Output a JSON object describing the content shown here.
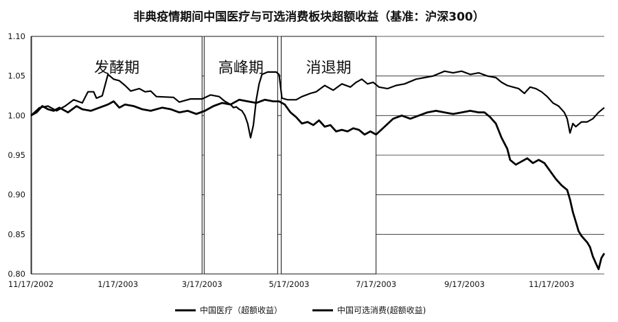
{
  "chart_data": {
    "type": "line",
    "title": "非典疫情期间中国医疗与可选消费板块超额收益（基准：沪深300）",
    "xlabel": "",
    "ylabel": "",
    "ylim": [
      0.8,
      1.1
    ],
    "yticks": [
      "0.80",
      "0.85",
      "0.90",
      "0.95",
      "1.00",
      "1.05",
      "1.10"
    ],
    "xtick_labels": [
      "11/17/2002",
      "1/17/2003",
      "3/17/2003",
      "5/17/2003",
      "7/17/2003",
      "9/17/2003",
      "11/17/2003"
    ],
    "x_range_days": [
      0,
      402
    ],
    "periods": [
      {
        "label": "发酵期",
        "start_day": 0,
        "end_day": 120
      },
      {
        "label": "高峰期",
        "start_day": 121,
        "end_day": 173
      },
      {
        "label": "消退期",
        "start_day": 175,
        "end_day": 242
      }
    ],
    "series": [
      {
        "name": "中国医疗（超额收益）",
        "points": [
          [
            0,
            1.0
          ],
          [
            6,
            1.01
          ],
          [
            12,
            1.012
          ],
          [
            18,
            1.006
          ],
          [
            24,
            1.012
          ],
          [
            30,
            1.02
          ],
          [
            36,
            1.016
          ],
          [
            40,
            1.03
          ],
          [
            44,
            1.03
          ],
          [
            46,
            1.022
          ],
          [
            50,
            1.025
          ],
          [
            54,
            1.052
          ],
          [
            58,
            1.046
          ],
          [
            62,
            1.044
          ],
          [
            66,
            1.038
          ],
          [
            70,
            1.031
          ],
          [
            76,
            1.034
          ],
          [
            80,
            1.03
          ],
          [
            84,
            1.031
          ],
          [
            88,
            1.024
          ],
          [
            100,
            1.023
          ],
          [
            104,
            1.017
          ],
          [
            112,
            1.021
          ],
          [
            120,
            1.021
          ],
          [
            126,
            1.026
          ],
          [
            132,
            1.024
          ],
          [
            136,
            1.018
          ],
          [
            140,
            1.014
          ],
          [
            142,
            1.01
          ],
          [
            144,
            1.011
          ],
          [
            146,
            1.008
          ],
          [
            148,
            1.006
          ],
          [
            150,
            1.0
          ],
          [
            152,
            0.99
          ],
          [
            154,
            0.972
          ],
          [
            156,
            0.988
          ],
          [
            158,
            1.02
          ],
          [
            160,
            1.04
          ],
          [
            162,
            1.052
          ],
          [
            166,
            1.055
          ],
          [
            172,
            1.055
          ],
          [
            174,
            1.052
          ],
          [
            176,
            1.022
          ],
          [
            180,
            1.02
          ],
          [
            186,
            1.02
          ],
          [
            190,
            1.024
          ],
          [
            196,
            1.028
          ],
          [
            200,
            1.03
          ],
          [
            206,
            1.038
          ],
          [
            212,
            1.032
          ],
          [
            218,
            1.04
          ],
          [
            224,
            1.036
          ],
          [
            228,
            1.042
          ],
          [
            232,
            1.046
          ],
          [
            236,
            1.04
          ],
          [
            240,
            1.042
          ],
          [
            244,
            1.036
          ],
          [
            250,
            1.034
          ],
          [
            256,
            1.038
          ],
          [
            262,
            1.04
          ],
          [
            270,
            1.046
          ],
          [
            276,
            1.048
          ],
          [
            282,
            1.05
          ],
          [
            290,
            1.056
          ],
          [
            296,
            1.054
          ],
          [
            302,
            1.056
          ],
          [
            308,
            1.052
          ],
          [
            314,
            1.054
          ],
          [
            320,
            1.05
          ],
          [
            326,
            1.048
          ],
          [
            330,
            1.042
          ],
          [
            334,
            1.038
          ],
          [
            338,
            1.036
          ],
          [
            342,
            1.034
          ],
          [
            346,
            1.028
          ],
          [
            350,
            1.036
          ],
          [
            354,
            1.034
          ],
          [
            358,
            1.03
          ],
          [
            362,
            1.024
          ],
          [
            366,
            1.016
          ],
          [
            370,
            1.012
          ],
          [
            374,
            1.004
          ],
          [
            376,
            0.996
          ],
          [
            378,
            0.978
          ],
          [
            380,
            0.99
          ],
          [
            382,
            0.986
          ],
          [
            386,
            0.992
          ],
          [
            390,
            0.992
          ],
          [
            394,
            0.996
          ],
          [
            398,
            1.004
          ],
          [
            402,
            1.01
          ]
        ]
      },
      {
        "name": "中国可选消费(超额收益)",
        "points": [
          [
            0,
            1.0
          ],
          [
            4,
            1.004
          ],
          [
            8,
            1.012
          ],
          [
            12,
            1.008
          ],
          [
            16,
            1.006
          ],
          [
            20,
            1.01
          ],
          [
            26,
            1.004
          ],
          [
            32,
            1.012
          ],
          [
            36,
            1.008
          ],
          [
            42,
            1.006
          ],
          [
            48,
            1.01
          ],
          [
            54,
            1.014
          ],
          [
            58,
            1.018
          ],
          [
            62,
            1.01
          ],
          [
            66,
            1.014
          ],
          [
            72,
            1.012
          ],
          [
            78,
            1.008
          ],
          [
            84,
            1.006
          ],
          [
            92,
            1.01
          ],
          [
            98,
            1.008
          ],
          [
            104,
            1.004
          ],
          [
            110,
            1.006
          ],
          [
            116,
            1.002
          ],
          [
            122,
            1.006
          ],
          [
            128,
            1.012
          ],
          [
            134,
            1.016
          ],
          [
            140,
            1.014
          ],
          [
            146,
            1.02
          ],
          [
            152,
            1.018
          ],
          [
            158,
            1.016
          ],
          [
            164,
            1.02
          ],
          [
            170,
            1.018
          ],
          [
            174,
            1.018
          ],
          [
            178,
            1.014
          ],
          [
            182,
            1.004
          ],
          [
            186,
            0.998
          ],
          [
            190,
            0.99
          ],
          [
            194,
            0.992
          ],
          [
            198,
            0.988
          ],
          [
            202,
            0.994
          ],
          [
            206,
            0.986
          ],
          [
            210,
            0.988
          ],
          [
            214,
            0.98
          ],
          [
            218,
            0.982
          ],
          [
            222,
            0.98
          ],
          [
            226,
            0.984
          ],
          [
            230,
            0.982
          ],
          [
            234,
            0.976
          ],
          [
            238,
            0.98
          ],
          [
            242,
            0.976
          ],
          [
            248,
            0.986
          ],
          [
            254,
            0.996
          ],
          [
            260,
            1.0
          ],
          [
            266,
            0.996
          ],
          [
            272,
            1.0
          ],
          [
            278,
            1.004
          ],
          [
            284,
            1.006
          ],
          [
            290,
            1.004
          ],
          [
            296,
            1.002
          ],
          [
            302,
            1.004
          ],
          [
            308,
            1.006
          ],
          [
            314,
            1.004
          ],
          [
            318,
            1.004
          ],
          [
            322,
            0.998
          ],
          [
            326,
            0.99
          ],
          [
            330,
            0.972
          ],
          [
            334,
            0.958
          ],
          [
            336,
            0.944
          ],
          [
            340,
            0.938
          ],
          [
            344,
            0.942
          ],
          [
            348,
            0.946
          ],
          [
            352,
            0.94
          ],
          [
            356,
            0.944
          ],
          [
            360,
            0.94
          ],
          [
            364,
            0.93
          ],
          [
            368,
            0.92
          ],
          [
            372,
            0.912
          ],
          [
            376,
            0.906
          ],
          [
            378,
            0.894
          ],
          [
            380,
            0.878
          ],
          [
            382,
            0.866
          ],
          [
            384,
            0.854
          ],
          [
            386,
            0.848
          ],
          [
            388,
            0.844
          ],
          [
            390,
            0.84
          ],
          [
            392,
            0.834
          ],
          [
            394,
            0.822
          ],
          [
            396,
            0.814
          ],
          [
            398,
            0.806
          ],
          [
            400,
            0.82
          ],
          [
            402,
            0.826
          ]
        ]
      }
    ],
    "legend": [
      "中国医疗（超额收益）",
      "中国可选消费(超额收益)"
    ]
  }
}
